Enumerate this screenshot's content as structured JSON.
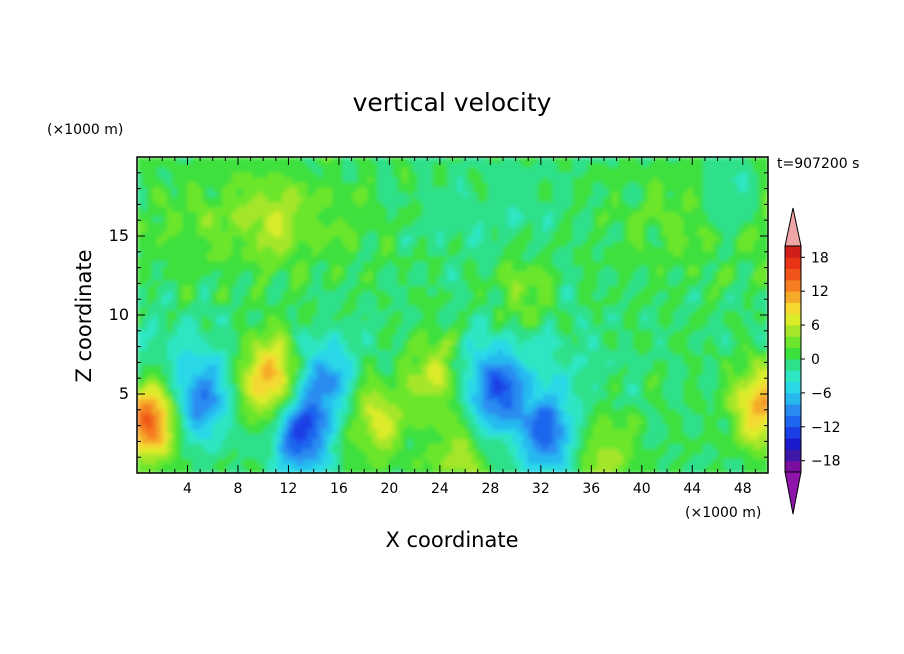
{
  "chart_data": {
    "type": "heatmap",
    "title": "vertical velocity",
    "xlabel": "X coordinate",
    "ylabel": "Z coordinate",
    "x_unit": "(×1000 m)",
    "y_unit": "(×1000 m)",
    "time_label": "t=907200 s",
    "xlim": [
      0,
      50
    ],
    "ylim": [
      0,
      20
    ],
    "x_ticks": [
      4,
      8,
      12,
      16,
      20,
      24,
      28,
      32,
      36,
      40,
      44,
      48
    ],
    "y_ticks": [
      5,
      10,
      15
    ],
    "colorbar": {
      "min": -20,
      "max": 20,
      "step": 2,
      "tick_values": [
        18,
        12,
        6,
        0,
        -6,
        -12,
        -18
      ],
      "tick_labels": [
        "18",
        "12",
        "6",
        "0",
        "−6",
        "−12",
        "−18"
      ],
      "colors": [
        "#7a0e9e",
        "#3d17a8",
        "#1a1acc",
        "#1b3fe6",
        "#1f66ee",
        "#2a8cf0",
        "#28b8f0",
        "#2ad8e8",
        "#2fe6c2",
        "#2ee08a",
        "#3ce03c",
        "#6ce62c",
        "#a6e62a",
        "#dcec2a",
        "#f5d830",
        "#f5aa2a",
        "#f57d22",
        "#f05418",
        "#e83414",
        "#d01e1a"
      ],
      "over_color": "#f0a6a6",
      "under_color": "#8e14aa"
    },
    "features": [
      {
        "x": 1.0,
        "z": 3.5,
        "w": 15
      },
      {
        "x": 10.5,
        "z": 6.0,
        "w": 12
      },
      {
        "x": 19.0,
        "z": 3.5,
        "w": 7
      },
      {
        "x": 23.5,
        "z": 6.5,
        "w": 8
      },
      {
        "x": 49.5,
        "z": 4.5,
        "w": 12
      },
      {
        "x": 5.0,
        "z": 4.5,
        "w": -9
      },
      {
        "x": 13.0,
        "z": 2.5,
        "w": -13
      },
      {
        "x": 15.0,
        "z": 6.0,
        "w": -8
      },
      {
        "x": 28.5,
        "z": 5.0,
        "w": -10
      },
      {
        "x": 32.5,
        "z": 2.5,
        "w": -11
      },
      {
        "x": 11.0,
        "z": 16.0,
        "w": 3
      },
      {
        "x": 30.5,
        "z": 11.5,
        "w": 4
      },
      {
        "x": 47.0,
        "z": 17.0,
        "w": -5
      },
      {
        "x": 25.5,
        "z": 1.0,
        "w": 5
      },
      {
        "x": 37.0,
        "z": 1.0,
        "w": 5
      }
    ]
  }
}
